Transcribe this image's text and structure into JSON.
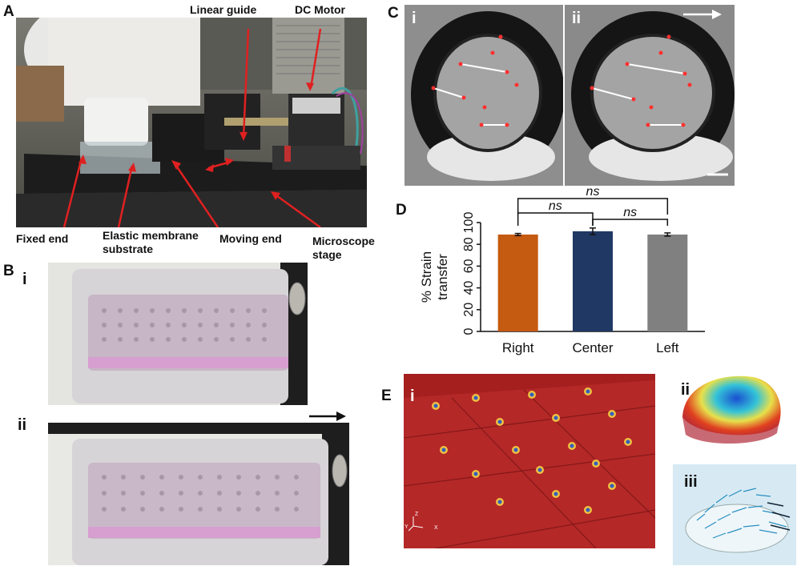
{
  "figure": {
    "panels": {
      "A": {
        "letter": "A",
        "callouts": {
          "linear_guide": "Linear guide",
          "dc_motor": "DC Motor",
          "fixed_end": "Fixed end",
          "elastic_membrane_line1": "Elastic membrane",
          "elastic_membrane_line2": "substrate",
          "moving_end": "Moving end",
          "microscope_line1": "Microscope",
          "microscope_line2": "stage"
        }
      },
      "B": {
        "letter": "B",
        "sub_i": "i",
        "sub_ii": "ii"
      },
      "C": {
        "letter": "C",
        "sub_i": "i",
        "sub_ii": "ii"
      },
      "D": {
        "letter": "D",
        "sig_top": "ns",
        "sig_left": "ns",
        "sig_right": "ns"
      },
      "E": {
        "letter": "E",
        "sub_i": "i",
        "sub_ii": "ii",
        "sub_iii": "iii",
        "axis_z": "Z",
        "axis_y": "Y",
        "axis_x": "X"
      }
    }
  },
  "chart_data": {
    "type": "bar",
    "categories": [
      "Right",
      "Center",
      "Left"
    ],
    "values": [
      89,
      92,
      89
    ],
    "errors": [
      1,
      3,
      1.5
    ],
    "colors": [
      "#c55a11",
      "#203864",
      "#808080"
    ],
    "ylabel_line1": "% Strain",
    "ylabel_line2": "transfer",
    "ylim": [
      0,
      100
    ],
    "yticks": [
      0,
      20,
      40,
      60,
      80,
      100
    ],
    "grid": false,
    "significance": [
      {
        "pair": [
          "Right",
          "Left"
        ],
        "label": "ns"
      },
      {
        "pair": [
          "Right",
          "Center"
        ],
        "label": "ns"
      },
      {
        "pair": [
          "Center",
          "Left"
        ],
        "label": "ns"
      }
    ]
  }
}
